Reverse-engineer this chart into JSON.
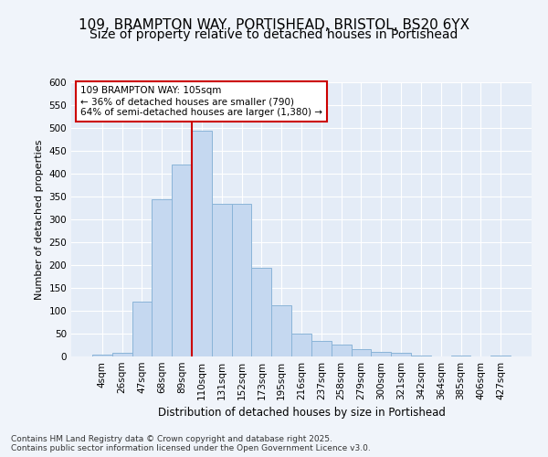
{
  "title_line1": "109, BRAMPTON WAY, PORTISHEAD, BRISTOL, BS20 6YX",
  "title_line2": "Size of property relative to detached houses in Portishead",
  "xlabel": "Distribution of detached houses by size in Portishead",
  "ylabel": "Number of detached properties",
  "categories": [
    "4sqm",
    "26sqm",
    "47sqm",
    "68sqm",
    "89sqm",
    "110sqm",
    "131sqm",
    "152sqm",
    "173sqm",
    "195sqm",
    "216sqm",
    "237sqm",
    "258sqm",
    "279sqm",
    "300sqm",
    "321sqm",
    "342sqm",
    "364sqm",
    "385sqm",
    "406sqm",
    "427sqm"
  ],
  "values": [
    5,
    8,
    120,
    345,
    420,
    495,
    335,
    335,
    195,
    112,
    50,
    35,
    27,
    16,
    11,
    8,
    2,
    0,
    2,
    1,
    2
  ],
  "bar_color": "#c5d8f0",
  "bar_edge_color": "#8ab4d8",
  "vline_index": 5,
  "vline_color": "#cc0000",
  "annotation_text": "109 BRAMPTON WAY: 105sqm\n← 36% of detached houses are smaller (790)\n64% of semi-detached houses are larger (1,380) →",
  "annotation_box_color": "#ffffff",
  "annotation_box_edge": "#cc0000",
  "ylim": [
    0,
    600
  ],
  "yticks": [
    0,
    50,
    100,
    150,
    200,
    250,
    300,
    350,
    400,
    450,
    500,
    550,
    600
  ],
  "footer_text": "Contains HM Land Registry data © Crown copyright and database right 2025.\nContains public sector information licensed under the Open Government Licence v3.0.",
  "fig_bg_color": "#f0f4fa",
  "plot_bg_color": "#e4ecf7",
  "grid_color": "#ffffff",
  "title_fontsize": 11,
  "subtitle_fontsize": 10
}
